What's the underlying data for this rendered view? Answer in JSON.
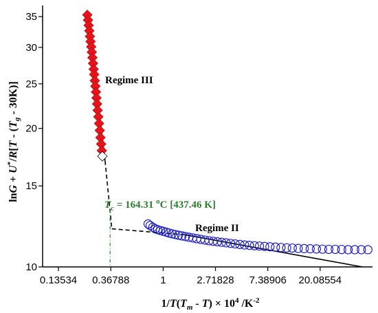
{
  "chart_data": {
    "type": "scatter",
    "xscale": "log",
    "yscale": "log",
    "xlim": [
      0.1,
      54.6
    ],
    "ylim": [
      10,
      37
    ],
    "xticks": [
      {
        "value": 0.13534,
        "label": "0.13534"
      },
      {
        "value": 0.36788,
        "label": "0.36788"
      },
      {
        "value": 1,
        "label": "1"
      },
      {
        "value": 2.71828,
        "label": "2.71828"
      },
      {
        "value": 7.38906,
        "label": "7.38906"
      },
      {
        "value": 20.08554,
        "label": "20.08554"
      }
    ],
    "yticks": [
      10,
      15,
      20,
      25,
      30,
      35
    ],
    "xlabel_parts": [
      {
        "t": "1/",
        "i": false
      },
      {
        "t": "T",
        "i": true
      },
      {
        "t": "(",
        "i": false
      },
      {
        "t": "T",
        "i": true
      },
      {
        "t": "m",
        "i": true,
        "sub": true
      },
      {
        "t": " - ",
        "i": false
      },
      {
        "t": "T",
        "i": true
      },
      {
        "t": ") × 10",
        "i": false
      },
      {
        "t": "4",
        "sup": true
      },
      {
        "t": " /K",
        "i": false
      },
      {
        "t": "-2",
        "sup": true
      }
    ],
    "ylabel_parts": [
      {
        "t": "ln",
        "i": false
      },
      {
        "t": "G",
        "i": true
      },
      {
        "t": " + ",
        "i": false
      },
      {
        "t": "U",
        "i": true
      },
      {
        "t": "*",
        "sup": true
      },
      {
        "t": "/",
        "i": false
      },
      {
        "t": "R",
        "i": true
      },
      {
        "t": "[",
        "i": false
      },
      {
        "t": "T",
        "i": true
      },
      {
        "t": " - (",
        "i": false
      },
      {
        "t": "T",
        "i": true
      },
      {
        "t": "g",
        "i": true,
        "sub": true
      },
      {
        "t": " - 30K)]",
        "i": false
      }
    ],
    "series": [
      {
        "name": "Regime III",
        "marker": "diamond",
        "color": "#e8141b",
        "points": [
          [
            0.235,
            35.3
          ],
          [
            0.238,
            34.4
          ],
          [
            0.241,
            33.5
          ],
          [
            0.244,
            32.6
          ],
          [
            0.247,
            31.7
          ],
          [
            0.25,
            30.9
          ],
          [
            0.253,
            30.1
          ],
          [
            0.256,
            29.3
          ],
          [
            0.259,
            28.5
          ],
          [
            0.262,
            27.7
          ],
          [
            0.265,
            26.9
          ],
          [
            0.268,
            26.2
          ],
          [
            0.271,
            25.4
          ],
          [
            0.274,
            24.7
          ],
          [
            0.277,
            24.0
          ],
          [
            0.28,
            23.3
          ],
          [
            0.283,
            22.6
          ],
          [
            0.286,
            21.9
          ],
          [
            0.29,
            21.2
          ],
          [
            0.294,
            20.5
          ],
          [
            0.298,
            19.8
          ],
          [
            0.302,
            19.1
          ],
          [
            0.306,
            18.5
          ],
          [
            0.31,
            17.9
          ],
          [
            0.313,
            17.4
          ]
        ]
      },
      {
        "name": "Regime II",
        "marker": "circle",
        "color": "#1d1dc8",
        "points": [
          [
            0.75,
            12.4
          ],
          [
            0.78,
            12.3
          ],
          [
            0.82,
            12.2
          ],
          [
            0.86,
            12.1
          ],
          [
            0.9,
            12.05
          ],
          [
            0.95,
            12.0
          ],
          [
            1.0,
            11.95
          ],
          [
            1.06,
            11.9
          ],
          [
            1.12,
            11.85
          ],
          [
            1.19,
            11.8
          ],
          [
            1.26,
            11.76
          ],
          [
            1.34,
            11.72
          ],
          [
            1.43,
            11.68
          ],
          [
            1.53,
            11.64
          ],
          [
            1.64,
            11.6
          ],
          [
            1.76,
            11.56
          ],
          [
            1.9,
            11.52
          ],
          [
            2.05,
            11.48
          ],
          [
            2.22,
            11.44
          ],
          [
            2.4,
            11.4
          ],
          [
            2.6,
            11.37
          ],
          [
            2.82,
            11.34
          ],
          [
            3.06,
            11.31
          ],
          [
            3.33,
            11.28
          ],
          [
            3.63,
            11.25
          ],
          [
            3.96,
            11.22
          ],
          [
            4.33,
            11.19
          ],
          [
            4.74,
            11.16
          ],
          [
            5.2,
            11.14
          ],
          [
            5.72,
            11.12
          ],
          [
            6.3,
            11.1
          ],
          [
            6.95,
            11.08
          ],
          [
            7.7,
            11.06
          ],
          [
            8.55,
            11.04
          ],
          [
            9.5,
            11.02
          ],
          [
            10.6,
            11.0
          ],
          [
            11.8,
            10.99
          ],
          [
            13.2,
            10.97
          ],
          [
            14.8,
            10.96
          ],
          [
            16.6,
            10.95
          ],
          [
            18.7,
            10.94
          ],
          [
            21.0,
            10.93
          ],
          [
            23.7,
            10.92
          ],
          [
            26.8,
            10.92
          ],
          [
            30.3,
            10.91
          ],
          [
            34.3,
            10.9
          ],
          [
            38.9,
            10.9
          ],
          [
            44.1,
            10.9
          ],
          [
            50.0,
            10.9
          ]
        ]
      }
    ],
    "fit_lines": [
      {
        "style": "solid",
        "points": [
          [
            0.235,
            35.8
          ],
          [
            0.33,
            17.0
          ]
        ]
      },
      {
        "style": "dashed",
        "points": [
          [
            0.33,
            17.0
          ],
          [
            0.375,
            12.1
          ]
        ]
      },
      {
        "style": "dashed",
        "points": [
          [
            0.375,
            12.1
          ],
          [
            1.5,
            11.75
          ]
        ]
      },
      {
        "style": "solid",
        "points": [
          [
            1.5,
            11.75
          ],
          [
            45.0,
            10.0
          ]
        ]
      }
    ],
    "tc_marker": {
      "x": 0.363
    },
    "annotations": {
      "regime3": "Regime III",
      "regime2": "Regime II",
      "tc_parts": [
        {
          "t": "T",
          "i": true
        },
        {
          "t": "c",
          "i": true,
          "sub": true
        },
        {
          "t": " = 164.31 ",
          "i": false
        },
        {
          "t": "o",
          "sup": true
        },
        {
          "t": "C [437.46 K]",
          "i": false
        }
      ]
    }
  }
}
